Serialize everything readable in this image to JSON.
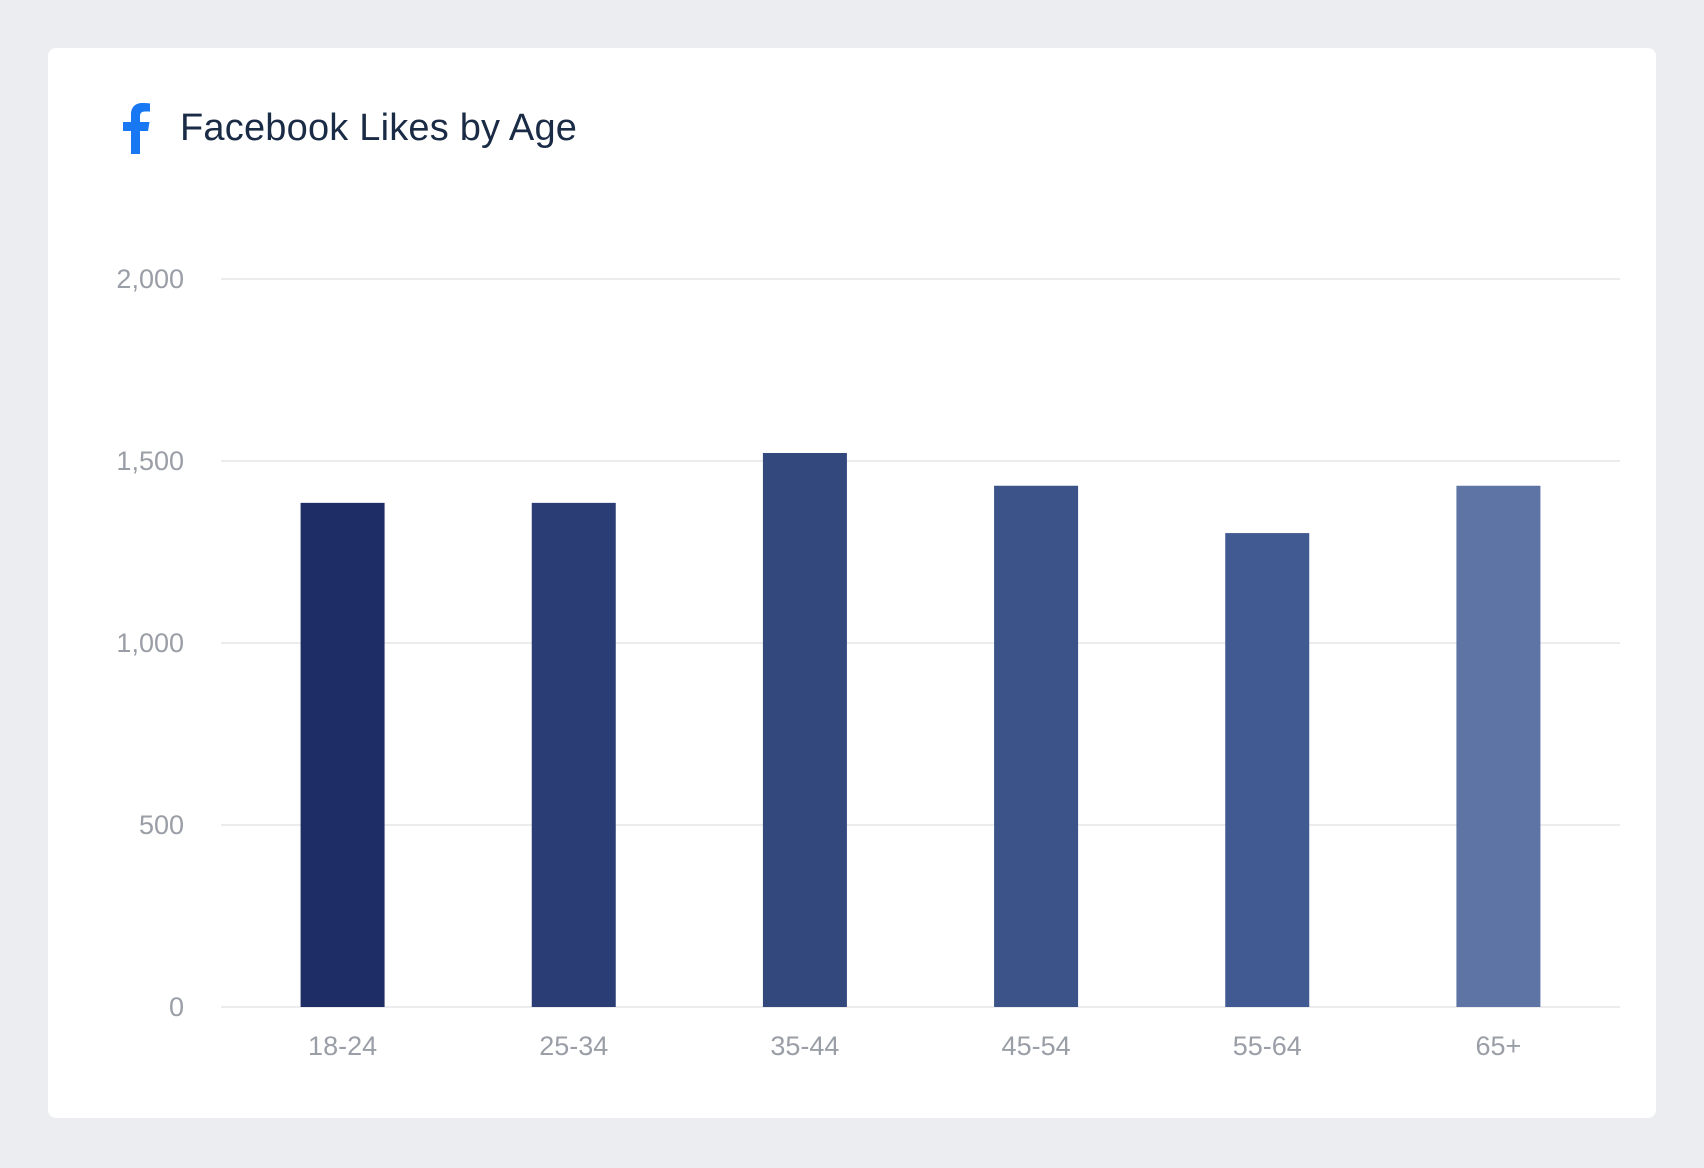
{
  "header": {
    "title": "Facebook Likes by Age",
    "icon": "facebook-icon",
    "icon_color": "#1877f2"
  },
  "chart_data": {
    "type": "bar",
    "title": "Facebook Likes by Age",
    "xlabel": "",
    "ylabel": "",
    "categories": [
      "18-24",
      "25-34",
      "35-44",
      "45-54",
      "55-64",
      "65+"
    ],
    "values": [
      1385,
      1385,
      1522,
      1432,
      1302,
      1432
    ],
    "colors": [
      "#1e2d66",
      "#2a3e75",
      "#33497e",
      "#3c5389",
      "#415a91",
      "#5e74a4"
    ],
    "ylim": [
      0,
      2000
    ],
    "yticks": [
      0,
      500,
      1000,
      1500,
      2000
    ],
    "ytick_labels": [
      "0",
      "500",
      "1,000",
      "1,500",
      "2,000"
    ],
    "grid": true,
    "legend": "none"
  }
}
